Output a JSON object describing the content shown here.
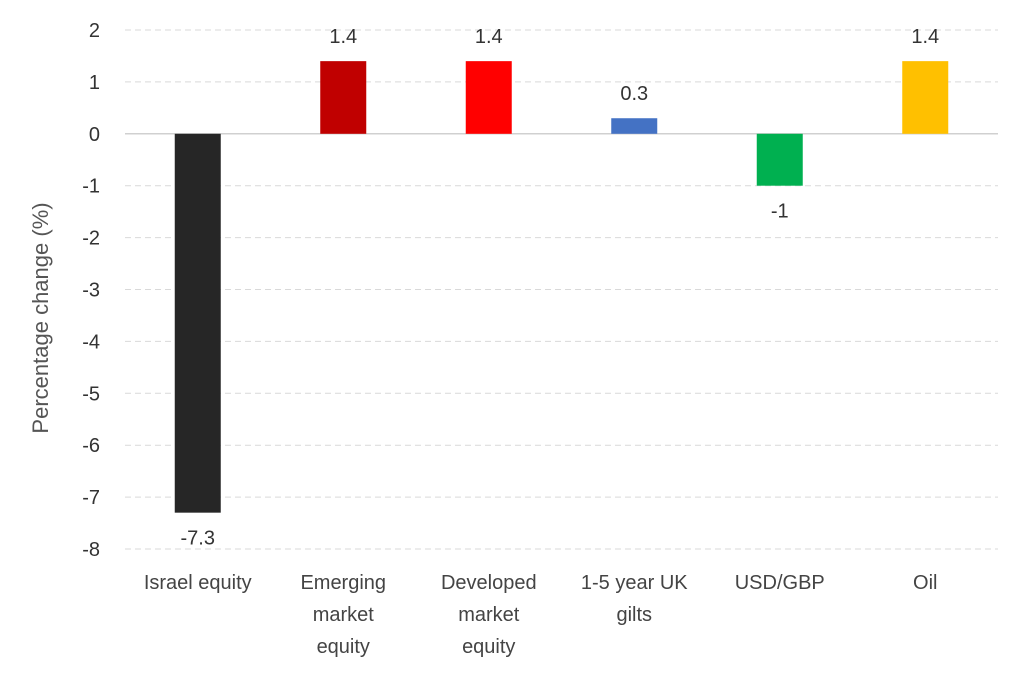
{
  "chart_data": {
    "type": "bar",
    "title": "",
    "xlabel": "",
    "ylabel": "Percentage change (%)",
    "ylim": [
      -8,
      2
    ],
    "yticks": [
      2,
      1,
      0,
      -1,
      -2,
      -3,
      -4,
      -5,
      -6,
      -7,
      -8
    ],
    "ytick_labels": [
      "2",
      "1",
      "0",
      "-1",
      "-2",
      "-3",
      "-4",
      "-5",
      "-6",
      "-7",
      "-8"
    ],
    "grid": true,
    "legend": "none",
    "categories": [
      [
        "Israel equity"
      ],
      [
        "Emerging",
        "market",
        "equity"
      ],
      [
        "Developed",
        "market",
        "equity"
      ],
      [
        "1-5 year UK",
        "gilts"
      ],
      [
        "USD/GBP"
      ],
      [
        "Oil"
      ]
    ],
    "values": [
      -7.3,
      1.4,
      1.4,
      0.3,
      -1,
      1.4
    ],
    "data_labels": [
      "-7.3",
      "1.4",
      "1.4",
      "0.3",
      "-1",
      "1.4"
    ],
    "colors": [
      "#262626",
      "#c00000",
      "#ff0000",
      "#4472c4",
      "#00b050",
      "#ffc000"
    ]
  }
}
